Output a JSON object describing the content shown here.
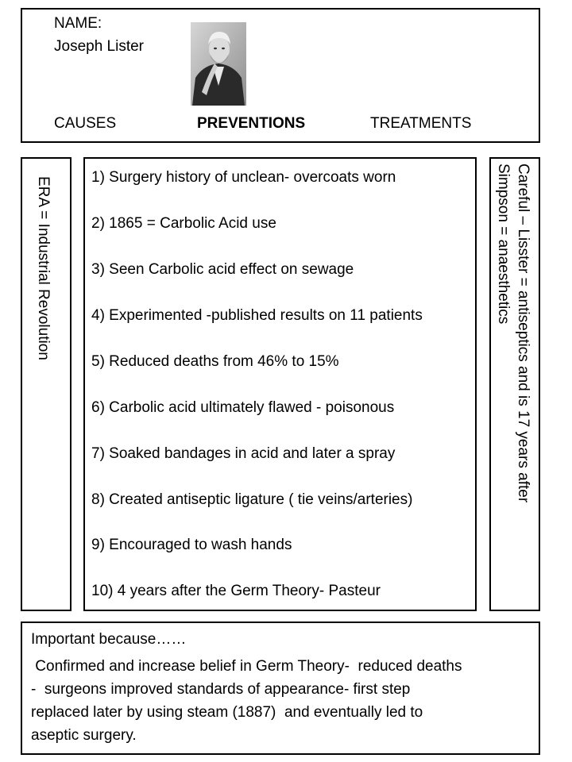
{
  "header": {
    "name_label": "NAME:",
    "name_value": "Joseph Lister",
    "tabs": [
      "CAUSES",
      "PREVENTIONS",
      "TREATMENTS"
    ]
  },
  "era": {
    "text": "ERA =  Industrial Revolution"
  },
  "preventions": {
    "items": [
      "1) Surgery history of unclean- overcoats worn",
      "2) 1865 = Carbolic Acid use",
      "3) Seen Carbolic acid effect on sewage",
      "4) Experimented -published results on 11 patients",
      "5) Reduced deaths from 46% to 15%",
      "6) Carbolic acid ultimately flawed - poisonous",
      "7) Soaked bandages in acid and later a spray",
      "8) Created antiseptic ligature ( tie veins/arteries)",
      "9) Encouraged to wash hands",
      "10) 4 years after the Germ Theory- Pasteur"
    ]
  },
  "side_note": {
    "line1": "Careful – Lisster = antiseptics and is 17 years after",
    "line2": "Simpson = anaesthetics"
  },
  "importance": {
    "heading": "Important because……",
    "body": " Confirmed and increase belief in Germ Theory-  reduced deaths\n-  surgeons improved standards of appearance- first step\nreplaced later by using steam (1887)  and eventually led to\naseptic surgery."
  },
  "colors": {
    "border": "#000000",
    "background": "#ffffff",
    "text": "#000000"
  }
}
